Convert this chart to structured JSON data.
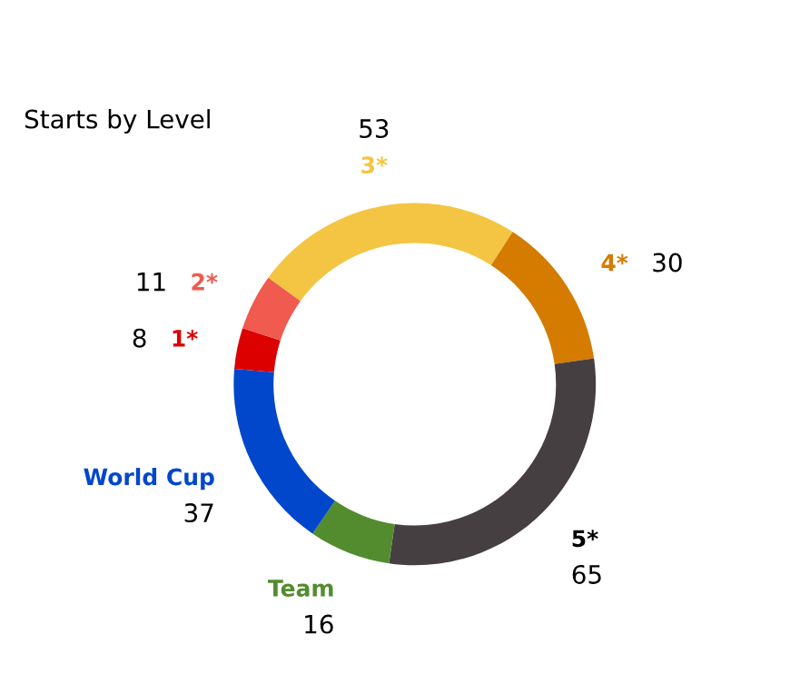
{
  "chart_data": {
    "type": "donut",
    "title": "Starts by Level",
    "categories": [
      "3*",
      "4*",
      "5*",
      "Team",
      "World Cup",
      "1*",
      "2*"
    ],
    "values": [
      53,
      30,
      65,
      16,
      37,
      8,
      11
    ],
    "colors": [
      "#f4c542",
      "#d47b00",
      "#463f41",
      "#538c2e",
      "#0047cc",
      "#dd0000",
      "#f05a4f"
    ],
    "data_labels": true,
    "legend": false
  }
}
